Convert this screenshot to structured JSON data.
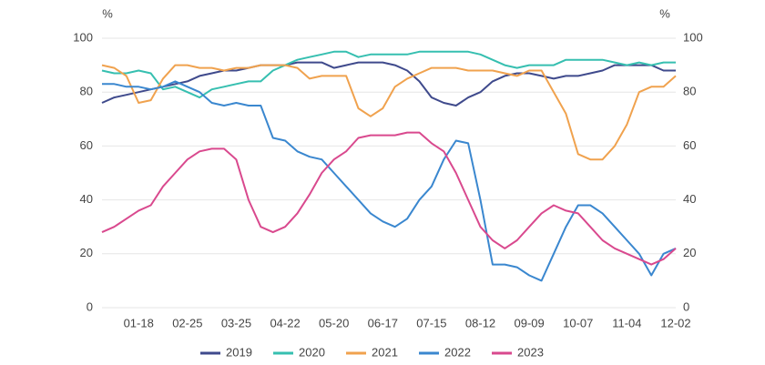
{
  "chart_data": {
    "type": "line",
    "y_unit": "%",
    "y2_unit": "%",
    "categories": [
      null,
      null,
      null,
      "01-18",
      null,
      null,
      null,
      "02-25",
      null,
      null,
      null,
      "03-25",
      null,
      null,
      null,
      "04-22",
      null,
      null,
      null,
      "05-20",
      null,
      null,
      null,
      "06-17",
      null,
      null,
      null,
      "07-15",
      null,
      null,
      null,
      "08-12",
      null,
      null,
      null,
      "09-09",
      null,
      null,
      null,
      "10-07",
      null,
      null,
      null,
      "11-04",
      null,
      null,
      null,
      "12-02"
    ],
    "series": [
      {
        "name": "2019",
        "color": "#3f4a8c",
        "values": [
          76,
          78,
          79,
          80,
          81,
          82,
          83,
          84,
          86,
          87,
          88,
          88,
          89,
          90,
          90,
          90,
          91,
          91,
          91,
          89,
          90,
          91,
          91,
          91,
          90,
          88,
          84,
          78,
          76,
          75,
          78,
          80,
          84,
          86,
          87,
          87,
          86,
          85,
          86,
          86,
          87,
          88,
          90,
          90,
          90,
          90,
          88,
          88
        ]
      },
      {
        "name": "2020",
        "color": "#36bfb0",
        "values": [
          88,
          87,
          87,
          88,
          87,
          81,
          82,
          80,
          78,
          81,
          82,
          83,
          84,
          84,
          88,
          90,
          92,
          93,
          94,
          95,
          95,
          93,
          94,
          94,
          94,
          94,
          95,
          95,
          95,
          95,
          95,
          94,
          92,
          90,
          89,
          90,
          90,
          90,
          92,
          92,
          92,
          92,
          91,
          90,
          91,
          90,
          91,
          91
        ]
      },
      {
        "name": "2021",
        "color": "#f0a24e",
        "values": [
          90,
          89,
          86,
          76,
          77,
          85,
          90,
          90,
          89,
          89,
          88,
          89,
          89,
          90,
          90,
          90,
          89,
          85,
          86,
          86,
          86,
          74,
          71,
          74,
          82,
          85,
          87,
          89,
          89,
          89,
          88,
          88,
          88,
          87,
          86,
          88,
          88,
          80,
          72,
          57,
          55,
          55,
          60,
          68,
          80,
          82,
          82,
          86
        ]
      },
      {
        "name": "2022",
        "color": "#3a87cf",
        "values": [
          83,
          83,
          82,
          82,
          81,
          82,
          84,
          82,
          80,
          76,
          75,
          76,
          75,
          75,
          63,
          62,
          58,
          56,
          55,
          50,
          45,
          40,
          35,
          32,
          30,
          33,
          40,
          45,
          55,
          62,
          61,
          40,
          16,
          16,
          15,
          12,
          10,
          20,
          30,
          38,
          38,
          35,
          30,
          25,
          20,
          12,
          20,
          22
        ]
      },
      {
        "name": "2023",
        "color": "#d9498e",
        "values": [
          28,
          30,
          33,
          36,
          38,
          45,
          50,
          55,
          58,
          59,
          59,
          55,
          40,
          30,
          28,
          30,
          35,
          42,
          50,
          55,
          58,
          63,
          64,
          64,
          64,
          65,
          65,
          61,
          58,
          50,
          40,
          30,
          25,
          22,
          25,
          30,
          35,
          38,
          36,
          35,
          30,
          25,
          22,
          20,
          18,
          16,
          18,
          22
        ]
      }
    ],
    "ylim": [
      0,
      100
    ],
    "yticks": [
      0,
      20,
      40,
      60,
      80,
      100
    ],
    "y2lim": [
      0,
      100
    ],
    "y2ticks": [
      0,
      20,
      40,
      60,
      80,
      100
    ],
    "grid": true,
    "legend": "bottom"
  }
}
